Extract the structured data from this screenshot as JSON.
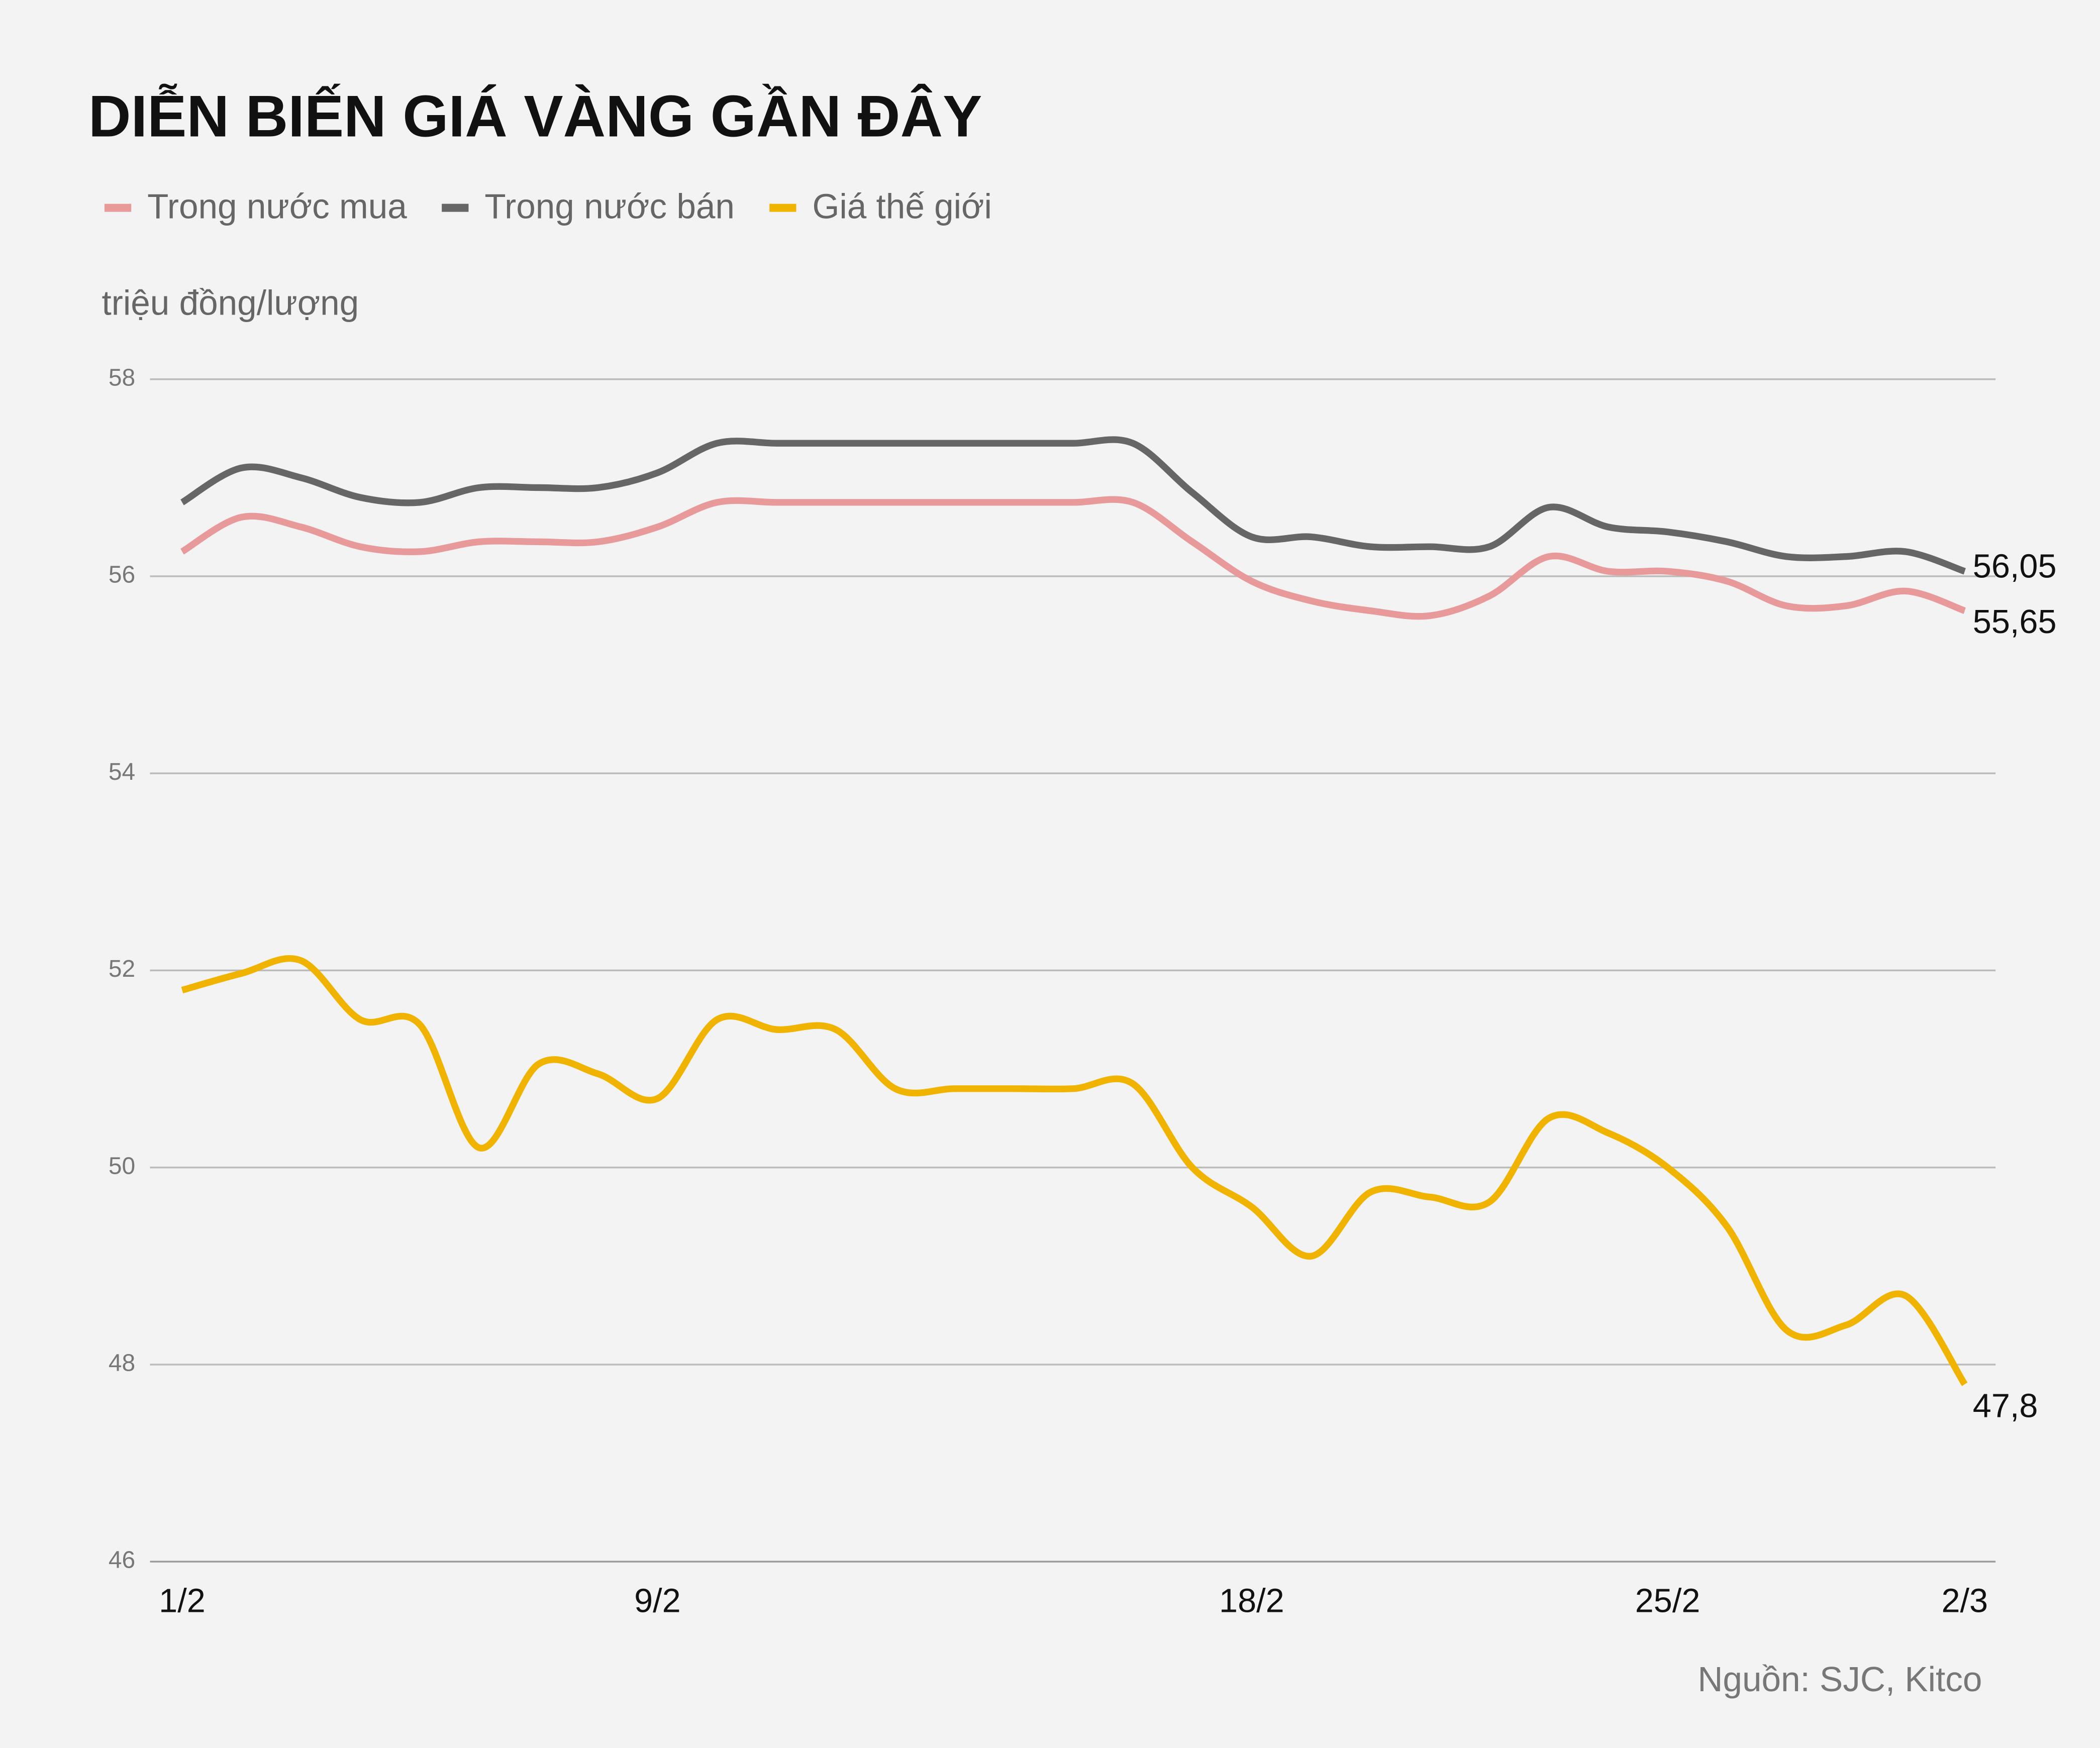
{
  "chart_data": {
    "type": "line",
    "title": "DIỄN BIẾN GIÁ VÀNG GẦN ĐÂY",
    "y_label": "triệu đồng/lượng",
    "source": "Nguồn: SJC, Kitco",
    "categories": [
      "1/2",
      null,
      null,
      null,
      null,
      null,
      null,
      null,
      "9/2",
      null,
      null,
      null,
      null,
      null,
      null,
      null,
      null,
      null,
      "18/2",
      null,
      null,
      null,
      null,
      null,
      null,
      "25/2",
      null,
      null,
      null,
      null,
      "2/3"
    ],
    "ylim": [
      46,
      58
    ],
    "yticks": [
      46,
      48,
      50,
      52,
      54,
      56,
      58
    ],
    "grid": true,
    "smooth": true,
    "series": [
      {
        "name": "Trong nước mua",
        "color": "#e89a9a",
        "values": [
          56.25,
          56.6,
          56.5,
          56.3,
          56.25,
          56.35,
          56.35,
          56.35,
          56.5,
          56.75,
          56.75,
          56.75,
          56.75,
          56.75,
          56.75,
          56.75,
          56.75,
          56.35,
          55.95,
          55.75,
          55.65,
          55.6,
          55.8,
          56.2,
          56.05,
          56.05,
          55.95,
          55.7,
          55.7,
          55.85,
          55.65
        ],
        "value_labels": [
          null,
          null,
          null,
          null,
          null,
          null,
          null,
          null,
          null,
          null,
          null,
          null,
          null,
          null,
          null,
          null,
          null,
          null,
          null,
          null,
          null,
          null,
          null,
          null,
          null,
          null,
          null,
          null,
          null,
          null,
          "55,65"
        ]
      },
      {
        "name": "Trong nước bán",
        "color": "#666666",
        "values": [
          56.75,
          57.1,
          57.0,
          56.8,
          56.75,
          56.9,
          56.9,
          56.9,
          57.05,
          57.35,
          57.35,
          57.35,
          57.35,
          57.35,
          57.35,
          57.35,
          57.35,
          56.85,
          56.4,
          56.4,
          56.3,
          56.3,
          56.3,
          56.7,
          56.5,
          56.45,
          56.35,
          56.2,
          56.2,
          56.25,
          56.05
        ],
        "value_labels": [
          null,
          null,
          null,
          null,
          null,
          null,
          null,
          null,
          null,
          null,
          null,
          null,
          null,
          null,
          null,
          null,
          null,
          null,
          null,
          null,
          null,
          null,
          null,
          null,
          null,
          null,
          null,
          null,
          null,
          null,
          "56,05"
        ]
      },
      {
        "name": "Giá thế giới",
        "color": "#f0b400",
        "values": [
          51.8,
          51.97,
          52.1,
          51.5,
          51.45,
          50.2,
          51.05,
          50.95,
          50.7,
          51.5,
          51.4,
          51.4,
          50.8,
          50.8,
          50.8,
          50.8,
          50.85,
          50.0,
          49.6,
          49.1,
          49.75,
          49.7,
          49.65,
          50.5,
          50.35,
          50.0,
          49.4,
          48.35,
          48.4,
          48.7,
          47.8
        ],
        "value_labels": [
          null,
          null,
          null,
          null,
          null,
          null,
          null,
          null,
          null,
          null,
          null,
          null,
          null,
          null,
          null,
          null,
          null,
          null,
          null,
          null,
          null,
          null,
          null,
          null,
          null,
          null,
          null,
          null,
          null,
          null,
          "47,8"
        ]
      }
    ]
  }
}
